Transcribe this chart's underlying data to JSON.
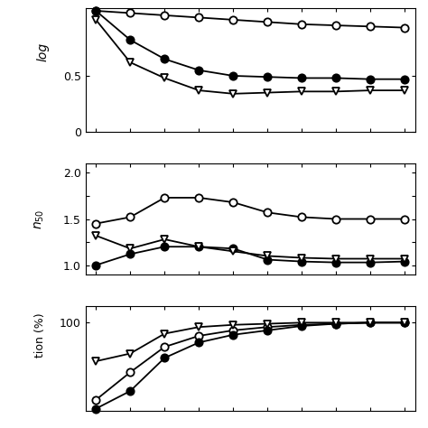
{
  "x_vals": [
    1,
    2,
    3,
    4,
    5,
    6,
    7,
    8,
    9,
    10
  ],
  "panel1": {
    "ylabel": "log",
    "ylim": [
      0,
      1.1
    ],
    "yticks": [
      0,
      0.5
    ],
    "ytick_labels": [
      "0",
      "0.5"
    ],
    "series": {
      "open_circle": [
        1.08,
        1.06,
        1.04,
        1.02,
        1.0,
        0.98,
        0.96,
        0.95,
        0.94,
        0.93
      ],
      "filled_circle": [
        1.08,
        0.82,
        0.65,
        0.55,
        0.5,
        0.49,
        0.48,
        0.48,
        0.47,
        0.47
      ],
      "open_triangle": [
        1.0,
        0.62,
        0.48,
        0.37,
        0.34,
        0.35,
        0.36,
        0.36,
        0.37,
        0.37
      ]
    }
  },
  "panel2": {
    "ylabel": "n_{50}",
    "ylim": [
      0.9,
      2.1
    ],
    "yticks": [
      1.0,
      1.5,
      2.0
    ],
    "ytick_labels": [
      "1.0",
      "1.5",
      "2.0"
    ],
    "series": {
      "open_circle": [
        1.45,
        1.52,
        1.73,
        1.73,
        1.68,
        1.57,
        1.52,
        1.5,
        1.5,
        1.5
      ],
      "filled_circle": [
        1.0,
        1.12,
        1.2,
        1.2,
        1.18,
        1.06,
        1.04,
        1.03,
        1.03,
        1.04
      ],
      "open_triangle": [
        1.32,
        1.18,
        1.28,
        1.2,
        1.15,
        1.1,
        1.08,
        1.07,
        1.07,
        1.07
      ]
    }
  },
  "panel3": {
    "ylabel": "tion (%)",
    "ylim": [
      20,
      115
    ],
    "yticks": [
      100
    ],
    "ytick_labels": [
      "100"
    ],
    "series": {
      "open_circle": [
        30,
        55,
        78,
        88,
        93,
        96,
        98,
        99,
        100,
        100
      ],
      "filled_circle": [
        22,
        38,
        68,
        82,
        89,
        93,
        97,
        99,
        100,
        100
      ],
      "open_triangle": [
        65,
        72,
        90,
        96,
        98,
        99,
        100,
        100,
        100,
        100
      ]
    }
  },
  "background": "#ffffff",
  "line_color": "#000000",
  "marker_size": 6,
  "linewidth": 1.3
}
